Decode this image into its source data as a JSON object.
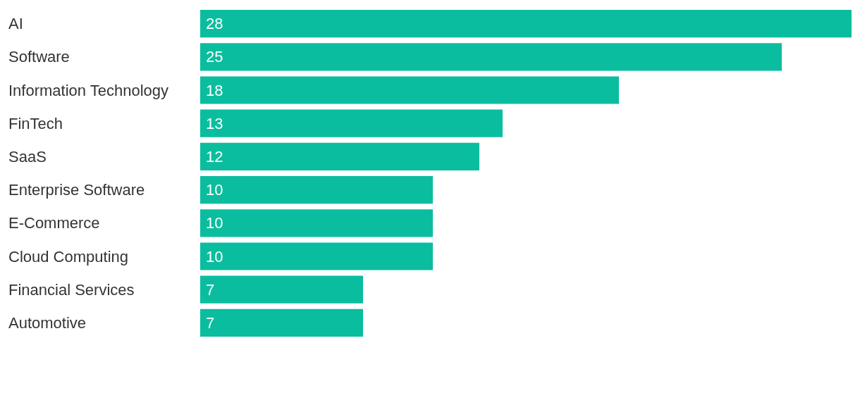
{
  "chart_data": {
    "type": "bar",
    "orientation": "horizontal",
    "categories": [
      "AI",
      "Software",
      "Information Technology",
      "FinTech",
      "SaaS",
      "Enterprise Software",
      "E-Commerce",
      "Cloud Computing",
      "Financial Services",
      "Automotive"
    ],
    "values": [
      28,
      25,
      18,
      13,
      12,
      10,
      10,
      10,
      7,
      7
    ],
    "color": "#0bbd9f",
    "data_labels": true
  }
}
